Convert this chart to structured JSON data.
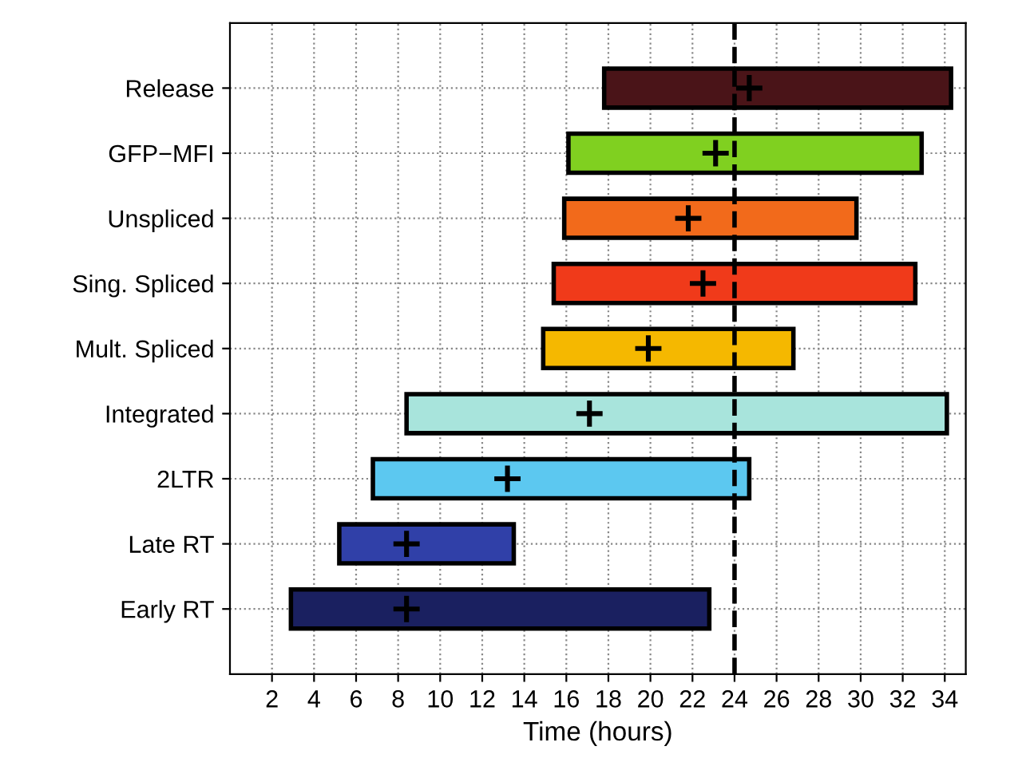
{
  "chart_data": {
    "type": "bar",
    "orientation": "horizontal",
    "xlabel": "Time (hours)",
    "categories": [
      "Release",
      "GFP−MFI",
      "Unspliced",
      "Sing. Spliced",
      "Mult. Spliced",
      "Integrated",
      "2LTR",
      "Late RT",
      "Early RT"
    ],
    "series": [
      {
        "type": "bar",
        "base": [
          17.8,
          16.1,
          15.9,
          15.4,
          14.9,
          8.4,
          6.8,
          5.2,
          2.9
        ],
        "values": [
          16.5,
          16.8,
          13.9,
          17.2,
          11.9,
          25.7,
          17.9,
          8.3,
          19.9
        ],
        "colors": [
          "#4a1418",
          "#80d020",
          "#f26a1b",
          "#f03a1a",
          "#f5b800",
          "#a8e4dc",
          "#5cc8f0",
          "#3040a8",
          "#1a2060"
        ]
      },
      {
        "type": "scatter",
        "marker": "cross",
        "color": "#000000",
        "values": [
          24.7,
          23.1,
          21.8,
          22.5,
          19.9,
          17.1,
          13.2,
          8.4,
          8.4
        ]
      }
    ],
    "xlim": [
      0,
      35
    ],
    "xticks": [
      2,
      4,
      6,
      8,
      10,
      12,
      14,
      16,
      18,
      20,
      22,
      24,
      26,
      28,
      30,
      32,
      34
    ],
    "ref_lines": [
      {
        "axis": "x",
        "value": 24,
        "color": "#000000",
        "line_style": "dashed"
      }
    ],
    "grid": true
  }
}
